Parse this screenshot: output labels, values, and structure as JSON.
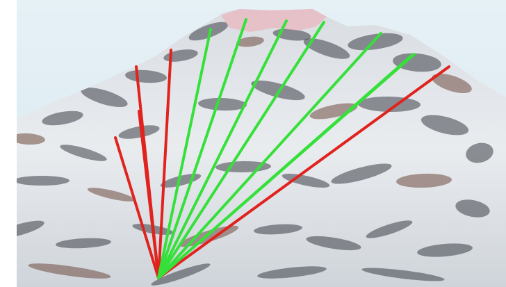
{
  "scene": {
    "colors": {
      "sky_top": "#e6f1f6",
      "sky_bottom": "#d7e7ef",
      "snow": "#f2f5f7",
      "rock_dark": "#3c4047",
      "rock_brown": "#6e4b40",
      "summit_pink": "#e9b9c0",
      "sightline_clear": "#36e03a",
      "sightline_blocked": "#e0231e"
    },
    "sightlines": {
      "count": 12,
      "clear_count": 7,
      "blocked_count": 5
    }
  }
}
